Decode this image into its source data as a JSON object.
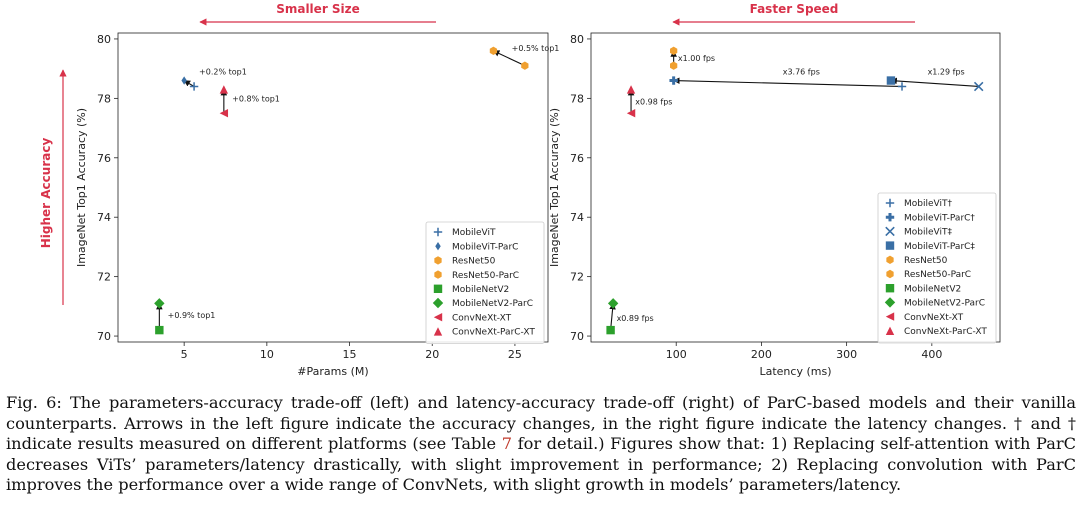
{
  "colors": {
    "blue": "#3a6fa5",
    "orange": "#f0a030",
    "green": "#2ca02c",
    "red": "#d8324a",
    "arrow": "#111111"
  },
  "top_labels": {
    "left": "Smaller Size",
    "right": "Faster Speed",
    "vertical": "Higher Accuracy"
  },
  "caption": {
    "part1": "Fig. 6: The parameters-accuracy trade-off (left) and latency-accuracy trade-off (right) of ParC-based models and their vanilla counterparts. Arrows in the left figure indicate the accuracy changes, in the right figure indicate the latency changes. † and † indicate results measured on different platforms (see Table ",
    "ref": "7",
    "part2": " for detail.) Figures show that: 1) Replacing self-attention with ParC decreases ViTs’ parameters/latency drastically, with slight improvement in performance; 2) Replacing convolution with ParC improves the performance over a wide range of ConvNets, with slight growth in models’ parameters/latency."
  },
  "chart_data": [
    {
      "type": "scatter",
      "xlabel": "#Params (M)",
      "ylabel": "ImageNet Top1 Accuracy (%)",
      "xlim": [
        1,
        27
      ],
      "ylim": [
        69.8,
        80.2
      ],
      "xticks": [
        5,
        10,
        15,
        20,
        25
      ],
      "yticks": [
        70,
        72,
        74,
        76,
        78,
        80
      ],
      "legend_position": "lower-right",
      "series": [
        {
          "name": "MobileViT",
          "marker": "plus",
          "color": "#3a6fa5",
          "points": [
            [
              5.6,
              78.4
            ]
          ]
        },
        {
          "name": "MobileViT-ParC",
          "marker": "diamond-thin",
          "color": "#3a6fa5",
          "points": [
            [
              5.0,
              78.6
            ]
          ]
        },
        {
          "name": "ResNet50",
          "marker": "hexagon",
          "color": "#f0a030",
          "points": [
            [
              25.6,
              79.1
            ]
          ]
        },
        {
          "name": "ResNet50-ParC",
          "marker": "hexagon",
          "color": "#f0a030",
          "points": [
            [
              23.7,
              79.6
            ]
          ]
        },
        {
          "name": "MobileNetV2",
          "marker": "square",
          "color": "#2ca02c",
          "points": [
            [
              3.5,
              70.2
            ]
          ]
        },
        {
          "name": "MobileNetV2-ParC",
          "marker": "diamond",
          "color": "#2ca02c",
          "points": [
            [
              3.5,
              71.1
            ]
          ]
        },
        {
          "name": "ConvNeXt-XT",
          "marker": "triangle-left",
          "color": "#d8324a",
          "points": [
            [
              7.4,
              77.5
            ]
          ]
        },
        {
          "name": "ConvNeXt-ParC-XT",
          "marker": "triangle-up",
          "color": "#d8324a",
          "points": [
            [
              7.4,
              78.3
            ]
          ]
        }
      ],
      "arrows": [
        {
          "from": [
            5.6,
            78.4
          ],
          "to": [
            5.0,
            78.6
          ]
        },
        {
          "from": [
            25.6,
            79.1
          ],
          "to": [
            23.7,
            79.6
          ]
        },
        {
          "from": [
            3.5,
            70.2
          ],
          "to": [
            3.5,
            71.1
          ]
        },
        {
          "from": [
            7.4,
            77.5
          ],
          "to": [
            7.4,
            78.3
          ]
        }
      ],
      "annotations": [
        {
          "text": "+0.2% top1",
          "x": 5.9,
          "y": 78.8
        },
        {
          "text": "+0.5% top1",
          "x": 24.8,
          "y": 79.6
        },
        {
          "text": "+0.8% top1",
          "x": 7.9,
          "y": 77.9
        },
        {
          "text": "+0.9% top1",
          "x": 4.0,
          "y": 70.6
        }
      ]
    },
    {
      "type": "scatter",
      "xlabel": "Latency (ms)",
      "ylabel": "ImageNet Top1 Accuracy (%)",
      "xlim": [
        0,
        480
      ],
      "ylim": [
        69.8,
        80.2
      ],
      "xticks": [
        100,
        200,
        300,
        400
      ],
      "yticks": [
        70,
        72,
        74,
        76,
        78,
        80
      ],
      "legend_position": "lower-right",
      "series": [
        {
          "name": "MobileViT†",
          "marker": "plus",
          "color": "#3a6fa5",
          "points": [
            [
              365,
              78.4
            ]
          ]
        },
        {
          "name": "MobileViT-ParC†",
          "marker": "plus-bold",
          "color": "#3a6fa5",
          "points": [
            [
              97,
              78.6
            ]
          ]
        },
        {
          "name": "MobileViT‡",
          "marker": "x",
          "color": "#3a6fa5",
          "points": [
            [
              455,
              78.4
            ]
          ]
        },
        {
          "name": "MobileViT-ParC‡",
          "marker": "square",
          "color": "#3a6fa5",
          "points": [
            [
              352,
              78.6
            ]
          ]
        },
        {
          "name": "ResNet50",
          "marker": "hexagon",
          "color": "#f0a030",
          "points": [
            [
              97,
              79.1
            ]
          ]
        },
        {
          "name": "ResNet50-ParC",
          "marker": "hexagon",
          "color": "#f0a030",
          "points": [
            [
              97,
              79.6
            ]
          ]
        },
        {
          "name": "MobileNetV2",
          "marker": "square",
          "color": "#2ca02c",
          "points": [
            [
              23,
              70.2
            ]
          ]
        },
        {
          "name": "MobileNetV2-ParC",
          "marker": "diamond",
          "color": "#2ca02c",
          "points": [
            [
              26,
              71.1
            ]
          ]
        },
        {
          "name": "ConvNeXt-XT",
          "marker": "triangle-left",
          "color": "#d8324a",
          "points": [
            [
              47,
              77.5
            ]
          ]
        },
        {
          "name": "ConvNeXt-ParC-XT",
          "marker": "triangle-up",
          "color": "#d8324a",
          "points": [
            [
              47,
              78.3
            ]
          ]
        }
      ],
      "arrows": [
        {
          "from": [
            365,
            78.4
          ],
          "to": [
            97,
            78.6
          ]
        },
        {
          "from": [
            455,
            78.4
          ],
          "to": [
            352,
            78.6
          ]
        },
        {
          "from": [
            97,
            79.1
          ],
          "to": [
            97,
            79.6
          ]
        },
        {
          "from": [
            23,
            70.2
          ],
          "to": [
            26,
            71.1
          ]
        },
        {
          "from": [
            47,
            77.5
          ],
          "to": [
            47,
            78.3
          ]
        }
      ],
      "annotations": [
        {
          "text": "x1.00 fps",
          "x": 102,
          "y": 79.25
        },
        {
          "text": "x3.76 fps",
          "x": 225,
          "y": 78.8
        },
        {
          "text": "x1.29 fps",
          "x": 395,
          "y": 78.8
        },
        {
          "text": "x0.98 fps",
          "x": 52,
          "y": 77.8
        },
        {
          "text": "x0.89 fps",
          "x": 30,
          "y": 70.5
        }
      ]
    }
  ]
}
